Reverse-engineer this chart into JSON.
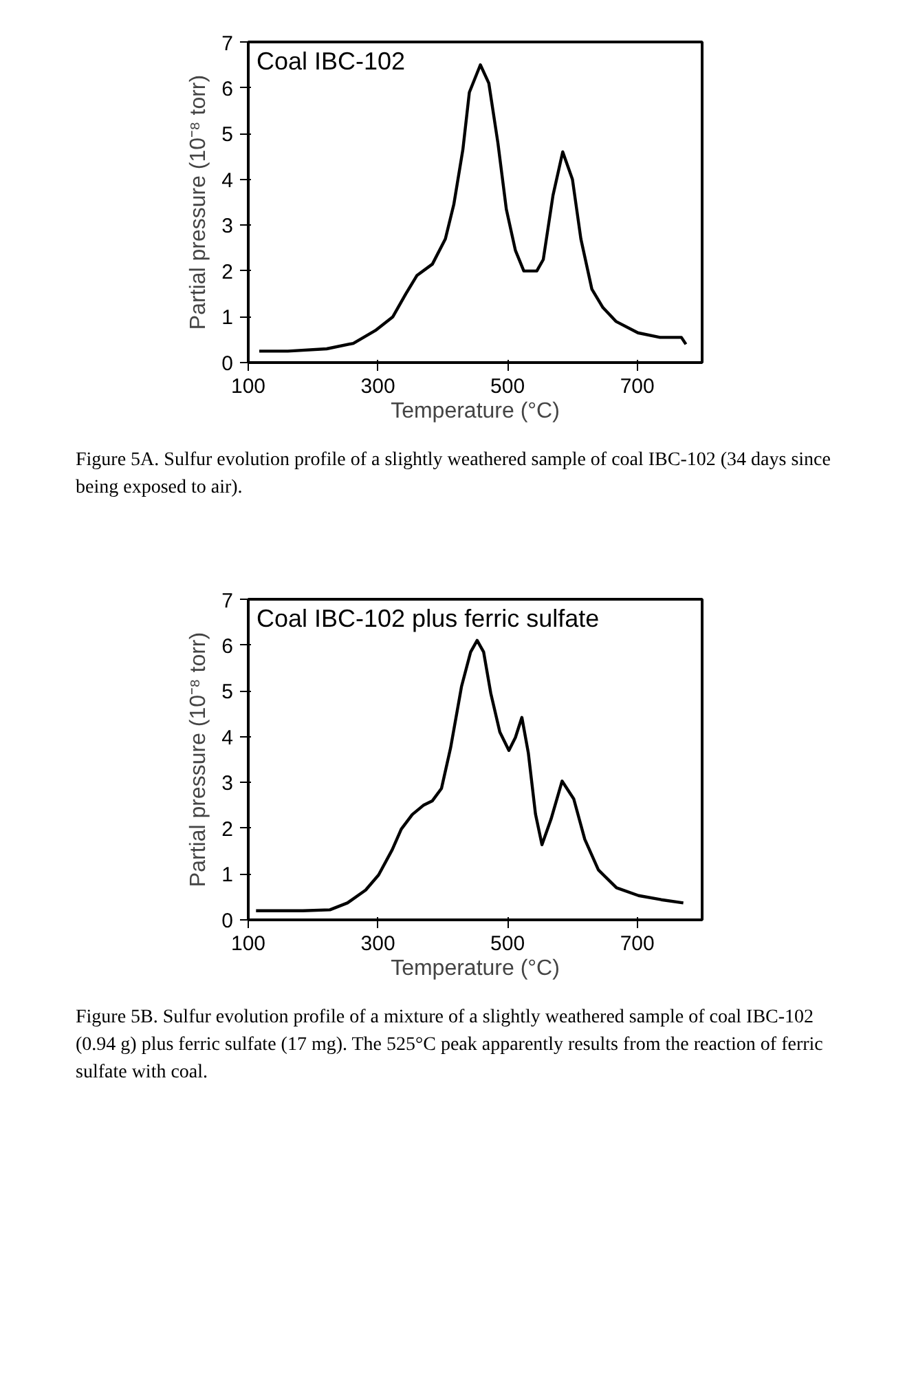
{
  "chart_data": [
    {
      "type": "line",
      "title": "Coal IBC-102",
      "xlabel": "Temperature (°C)",
      "ylabel": "Partial pressure (10⁻⁸ torr)",
      "xlim": [
        100,
        800
      ],
      "ylim": [
        0,
        7
      ],
      "xticks": [
        100,
        300,
        500,
        700
      ],
      "yticks": [
        0,
        1,
        2,
        3,
        4,
        5,
        6,
        7
      ],
      "grid": false,
      "line_style": "solid",
      "annotations": [
        "Figure 5A. Sulfur evolution profile of a slightly weathered sample of coal IBC-102 (34 days since being exposed to air)."
      ],
      "series": [
        {
          "color": "#000000",
          "x": [
            117,
            161,
            221,
            262,
            296,
            323,
            343,
            360,
            384,
            404,
            417,
            431,
            441,
            458,
            471,
            485,
            498,
            512,
            525,
            545,
            555,
            570,
            585,
            600,
            613,
            630,
            647,
            667,
            701,
            735,
            768,
            775
          ],
          "values": [
            0.25,
            0.25,
            0.3,
            0.42,
            0.7,
            1.0,
            1.5,
            1.9,
            2.15,
            2.7,
            3.45,
            4.65,
            5.9,
            6.5,
            6.1,
            4.8,
            3.35,
            2.45,
            2.0,
            2.0,
            2.25,
            3.65,
            4.6,
            4.0,
            2.7,
            1.6,
            1.2,
            0.9,
            0.65,
            0.55,
            0.55,
            0.4
          ]
        }
      ]
    },
    {
      "type": "line",
      "title": "Coal IBC-102 plus ferric sulfate",
      "xlabel": "Temperature (°C)",
      "ylabel": "Partial pressure (10⁻⁸ torr)",
      "xlim": [
        100,
        800
      ],
      "ylim": [
        0,
        7
      ],
      "xticks": [
        100,
        300,
        500,
        700
      ],
      "yticks": [
        0,
        1,
        2,
        3,
        4,
        5,
        6,
        7
      ],
      "grid": false,
      "line_style": "solid",
      "annotations": [
        "Figure 5B. Sulfur evolution profile of a mixture of a slightly weathered sample of coal IBC-102 (0.94 g) plus ferric sulfate (17 mg). The 525°C peak apparently results from the reaction of ferric sulfate with coal."
      ],
      "series": [
        {
          "color": "#000000",
          "x": [
            112,
            184,
            226,
            253,
            281,
            301,
            322,
            336,
            353,
            370,
            384,
            398,
            412,
            429,
            443,
            453,
            463,
            474,
            488,
            502,
            512,
            522,
            532,
            543,
            553,
            567,
            584,
            602,
            619,
            640,
            668,
            702,
            737,
            771
          ],
          "values": [
            0.2,
            0.2,
            0.22,
            0.37,
            0.65,
            0.98,
            1.53,
            1.98,
            2.3,
            2.5,
            2.6,
            2.87,
            3.75,
            5.1,
            5.85,
            6.1,
            5.85,
            4.95,
            4.1,
            3.7,
            3.98,
            4.42,
            3.64,
            2.31,
            1.64,
            2.2,
            3.03,
            2.64,
            1.76,
            1.09,
            0.7,
            0.53,
            0.44,
            0.37
          ]
        }
      ]
    }
  ]
}
